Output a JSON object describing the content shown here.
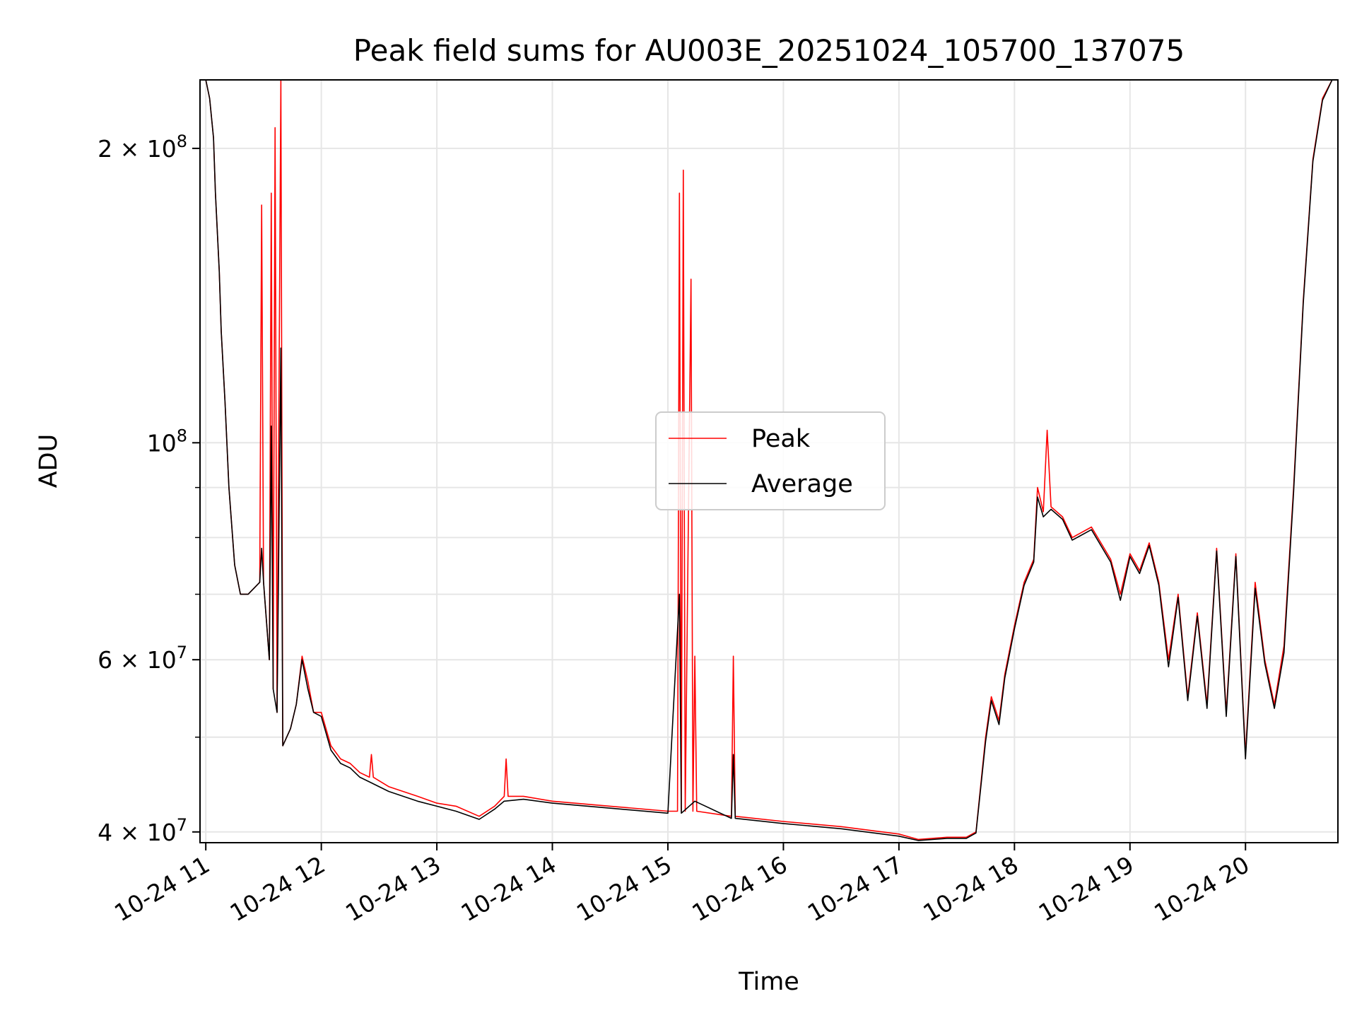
{
  "chart_data": {
    "type": "line",
    "title": "Peak field sums for AU003E_20251024_105700_137075",
    "xlabel": "Time",
    "ylabel": "ADU",
    "yscale": "log",
    "grid": true,
    "legend_position": "center",
    "xlim": [
      "2025-10-24 10:57",
      "2025-10-24 20:48"
    ],
    "ylim": [
      39000000,
      235000000
    ],
    "x_ticks": [
      "10-24 11",
      "10-24 12",
      "10-24 13",
      "10-24 14",
      "10-24 15",
      "10-24 16",
      "10-24 17",
      "10-24 18",
      "10-24 19",
      "10-24 20"
    ],
    "y_ticks": [
      {
        "value": 40000000,
        "label": "4 × 10",
        "exp": "7"
      },
      {
        "value": 60000000,
        "label": "6 × 10",
        "exp": "7"
      },
      {
        "value": 100000000,
        "label": "10",
        "exp": "8"
      },
      {
        "value": 200000000,
        "label": "2 × 10",
        "exp": "8"
      }
    ],
    "series": [
      {
        "name": "Peak",
        "color": "#ff0000",
        "points": [
          [
            "2025-10-24 10:57",
            235000000
          ],
          [
            "2025-10-24 11:00",
            235000000
          ],
          [
            "2025-10-24 11:02",
            225000000
          ],
          [
            "2025-10-24 11:04",
            205000000
          ],
          [
            "2025-10-24 11:05",
            180000000
          ],
          [
            "2025-10-24 11:07",
            150000000
          ],
          [
            "2025-10-24 11:08",
            130000000
          ],
          [
            "2025-10-24 11:10",
            110000000
          ],
          [
            "2025-10-24 11:12",
            90000000
          ],
          [
            "2025-10-24 11:15",
            75000000
          ],
          [
            "2025-10-24 11:18",
            70000000
          ],
          [
            "2025-10-24 11:22",
            70000000
          ],
          [
            "2025-10-24 11:28",
            72000000
          ],
          [
            "2025-10-24 11:29",
            175000000
          ],
          [
            "2025-10-24 11:30",
            72000000
          ],
          [
            "2025-10-24 11:33",
            60000000
          ],
          [
            "2025-10-24 11:34",
            180000000
          ],
          [
            "2025-10-24 11:35",
            56000000
          ],
          [
            "2025-10-24 11:36",
            210000000
          ],
          [
            "2025-10-24 11:37",
            53000000
          ],
          [
            "2025-10-24 11:39",
            235000000
          ],
          [
            "2025-10-24 11:40",
            49000000
          ],
          [
            "2025-10-24 11:44",
            51000000
          ],
          [
            "2025-10-24 11:47",
            54000000
          ],
          [
            "2025-10-24 11:50",
            60500000
          ],
          [
            "2025-10-24 11:53",
            57000000
          ],
          [
            "2025-10-24 11:56",
            53000000
          ],
          [
            "2025-10-24 12:00",
            53000000
          ],
          [
            "2025-10-24 12:05",
            49000000
          ],
          [
            "2025-10-24 12:10",
            47500000
          ],
          [
            "2025-10-24 12:15",
            47000000
          ],
          [
            "2025-10-24 12:20",
            46000000
          ],
          [
            "2025-10-24 12:25",
            45500000
          ],
          [
            "2025-10-24 12:26",
            48000000
          ],
          [
            "2025-10-24 12:27",
            45500000
          ],
          [
            "2025-10-24 12:35",
            44500000
          ],
          [
            "2025-10-24 12:50",
            43500000
          ],
          [
            "2025-10-24 13:00",
            42800000
          ],
          [
            "2025-10-24 13:10",
            42500000
          ],
          [
            "2025-10-24 13:22",
            41500000
          ],
          [
            "2025-10-24 13:30",
            42500000
          ],
          [
            "2025-10-24 13:35",
            43500000
          ],
          [
            "2025-10-24 13:36",
            47500000
          ],
          [
            "2025-10-24 13:37",
            43500000
          ],
          [
            "2025-10-24 13:45",
            43500000
          ],
          [
            "2025-10-24 14:00",
            43000000
          ],
          [
            "2025-10-24 14:30",
            42500000
          ],
          [
            "2025-10-24 15:00",
            42000000
          ],
          [
            "2025-10-24 15:05",
            42000000
          ],
          [
            "2025-10-24 15:06",
            180000000
          ],
          [
            "2025-10-24 15:07",
            42000000
          ],
          [
            "2025-10-24 15:08",
            190000000
          ],
          [
            "2025-10-24 15:09",
            42000000
          ],
          [
            "2025-10-24 15:12",
            147000000
          ],
          [
            "2025-10-24 15:13",
            42000000
          ],
          [
            "2025-10-24 15:14",
            60500000
          ],
          [
            "2025-10-24 15:15",
            42000000
          ],
          [
            "2025-10-24 15:33",
            41500000
          ],
          [
            "2025-10-24 15:34",
            60500000
          ],
          [
            "2025-10-24 15:35",
            41500000
          ],
          [
            "2025-10-24 16:00",
            41000000
          ],
          [
            "2025-10-24 16:30",
            40500000
          ],
          [
            "2025-10-24 17:00",
            39800000
          ],
          [
            "2025-10-24 17:10",
            39300000
          ],
          [
            "2025-10-24 17:25",
            39500000
          ],
          [
            "2025-10-24 17:35",
            39500000
          ],
          [
            "2025-10-24 17:40",
            40000000
          ],
          [
            "2025-10-24 17:45",
            50000000
          ],
          [
            "2025-10-24 17:48",
            55000000
          ],
          [
            "2025-10-24 17:52",
            52000000
          ],
          [
            "2025-10-24 17:55",
            58000000
          ],
          [
            "2025-10-24 18:00",
            65000000
          ],
          [
            "2025-10-24 18:05",
            72000000
          ],
          [
            "2025-10-24 18:10",
            76000000
          ],
          [
            "2025-10-24 18:12",
            90000000
          ],
          [
            "2025-10-24 18:15",
            85000000
          ],
          [
            "2025-10-24 18:17",
            103000000
          ],
          [
            "2025-10-24 18:19",
            86000000
          ],
          [
            "2025-10-24 18:25",
            84000000
          ],
          [
            "2025-10-24 18:30",
            80000000
          ],
          [
            "2025-10-24 18:40",
            82000000
          ],
          [
            "2025-10-24 18:50",
            76000000
          ],
          [
            "2025-10-24 18:55",
            70000000
          ],
          [
            "2025-10-24 19:00",
            77000000
          ],
          [
            "2025-10-24 19:05",
            74000000
          ],
          [
            "2025-10-24 19:10",
            79000000
          ],
          [
            "2025-10-24 19:15",
            72000000
          ],
          [
            "2025-10-24 19:20",
            60000000
          ],
          [
            "2025-10-24 19:25",
            70000000
          ],
          [
            "2025-10-24 19:30",
            55000000
          ],
          [
            "2025-10-24 19:35",
            67000000
          ],
          [
            "2025-10-24 19:40",
            54000000
          ],
          [
            "2025-10-24 19:45",
            78000000
          ],
          [
            "2025-10-24 19:50",
            53000000
          ],
          [
            "2025-10-24 19:55",
            77000000
          ],
          [
            "2025-10-24 20:00",
            48000000
          ],
          [
            "2025-10-24 20:05",
            72000000
          ],
          [
            "2025-10-24 20:10",
            60000000
          ],
          [
            "2025-10-24 20:15",
            54000000
          ],
          [
            "2025-10-24 20:20",
            62000000
          ],
          [
            "2025-10-24 20:25",
            90000000
          ],
          [
            "2025-10-24 20:30",
            140000000
          ],
          [
            "2025-10-24 20:35",
            195000000
          ],
          [
            "2025-10-24 20:40",
            225000000
          ],
          [
            "2025-10-24 20:45",
            235000000
          ],
          [
            "2025-10-24 20:48",
            235000000
          ]
        ]
      },
      {
        "name": "Average",
        "color": "#000000",
        "points": [
          [
            "2025-10-24 10:57",
            235000000
          ],
          [
            "2025-10-24 11:00",
            235000000
          ],
          [
            "2025-10-24 11:02",
            225000000
          ],
          [
            "2025-10-24 11:04",
            205000000
          ],
          [
            "2025-10-24 11:05",
            180000000
          ],
          [
            "2025-10-24 11:07",
            150000000
          ],
          [
            "2025-10-24 11:08",
            130000000
          ],
          [
            "2025-10-24 11:10",
            110000000
          ],
          [
            "2025-10-24 11:12",
            90000000
          ],
          [
            "2025-10-24 11:15",
            75000000
          ],
          [
            "2025-10-24 11:18",
            70000000
          ],
          [
            "2025-10-24 11:22",
            70000000
          ],
          [
            "2025-10-24 11:28",
            72000000
          ],
          [
            "2025-10-24 11:29",
            78000000
          ],
          [
            "2025-10-24 11:30",
            72000000
          ],
          [
            "2025-10-24 11:33",
            60000000
          ],
          [
            "2025-10-24 11:34",
            104000000
          ],
          [
            "2025-10-24 11:35",
            56000000
          ],
          [
            "2025-10-24 11:37",
            53000000
          ],
          [
            "2025-10-24 11:39",
            125000000
          ],
          [
            "2025-10-24 11:40",
            49000000
          ],
          [
            "2025-10-24 11:44",
            51000000
          ],
          [
            "2025-10-24 11:47",
            54000000
          ],
          [
            "2025-10-24 11:50",
            60000000
          ],
          [
            "2025-10-24 11:53",
            56000000
          ],
          [
            "2025-10-24 11:56",
            53000000
          ],
          [
            "2025-10-24 12:00",
            52500000
          ],
          [
            "2025-10-24 12:05",
            48500000
          ],
          [
            "2025-10-24 12:10",
            47000000
          ],
          [
            "2025-10-24 12:15",
            46500000
          ],
          [
            "2025-10-24 12:20",
            45500000
          ],
          [
            "2025-10-24 12:25",
            45000000
          ],
          [
            "2025-10-24 12:35",
            44000000
          ],
          [
            "2025-10-24 12:50",
            43000000
          ],
          [
            "2025-10-24 13:00",
            42500000
          ],
          [
            "2025-10-24 13:10",
            42000000
          ],
          [
            "2025-10-24 13:22",
            41200000
          ],
          [
            "2025-10-24 13:30",
            42200000
          ],
          [
            "2025-10-24 13:35",
            43000000
          ],
          [
            "2025-10-24 13:45",
            43200000
          ],
          [
            "2025-10-24 14:00",
            42800000
          ],
          [
            "2025-10-24 14:30",
            42300000
          ],
          [
            "2025-10-24 15:00",
            41800000
          ],
          [
            "2025-10-24 15:06",
            70000000
          ],
          [
            "2025-10-24 15:07",
            41800000
          ],
          [
            "2025-10-24 15:14",
            43000000
          ],
          [
            "2025-10-24 15:33",
            41300000
          ],
          [
            "2025-10-24 15:34",
            48000000
          ],
          [
            "2025-10-24 15:35",
            41300000
          ],
          [
            "2025-10-24 16:00",
            40800000
          ],
          [
            "2025-10-24 16:30",
            40300000
          ],
          [
            "2025-10-24 17:00",
            39600000
          ],
          [
            "2025-10-24 17:10",
            39200000
          ],
          [
            "2025-10-24 17:25",
            39400000
          ],
          [
            "2025-10-24 17:35",
            39400000
          ],
          [
            "2025-10-24 17:40",
            39900000
          ],
          [
            "2025-10-24 17:45",
            49500000
          ],
          [
            "2025-10-24 17:48",
            54500000
          ],
          [
            "2025-10-24 17:52",
            51500000
          ],
          [
            "2025-10-24 17:55",
            57500000
          ],
          [
            "2025-10-24 18:00",
            64500000
          ],
          [
            "2025-10-24 18:05",
            71500000
          ],
          [
            "2025-10-24 18:10",
            75500000
          ],
          [
            "2025-10-24 18:12",
            88000000
          ],
          [
            "2025-10-24 18:15",
            84000000
          ],
          [
            "2025-10-24 18:19",
            85500000
          ],
          [
            "2025-10-24 18:25",
            83500000
          ],
          [
            "2025-10-24 18:30",
            79500000
          ],
          [
            "2025-10-24 18:40",
            81500000
          ],
          [
            "2025-10-24 18:50",
            75500000
          ],
          [
            "2025-10-24 18:55",
            69000000
          ],
          [
            "2025-10-24 19:00",
            76500000
          ],
          [
            "2025-10-24 19:05",
            73500000
          ],
          [
            "2025-10-24 19:10",
            78500000
          ],
          [
            "2025-10-24 19:15",
            71500000
          ],
          [
            "2025-10-24 19:20",
            59000000
          ],
          [
            "2025-10-24 19:25",
            69500000
          ],
          [
            "2025-10-24 19:30",
            54500000
          ],
          [
            "2025-10-24 19:35",
            66500000
          ],
          [
            "2025-10-24 19:40",
            53500000
          ],
          [
            "2025-10-24 19:45",
            77500000
          ],
          [
            "2025-10-24 19:50",
            52500000
          ],
          [
            "2025-10-24 19:55",
            76500000
          ],
          [
            "2025-10-24 20:00",
            47500000
          ],
          [
            "2025-10-24 20:05",
            71000000
          ],
          [
            "2025-10-24 20:10",
            59500000
          ],
          [
            "2025-10-24 20:15",
            53500000
          ],
          [
            "2025-10-24 20:20",
            61000000
          ],
          [
            "2025-10-24 20:25",
            89000000
          ],
          [
            "2025-10-24 20:30",
            139000000
          ],
          [
            "2025-10-24 20:35",
            194000000
          ],
          [
            "2025-10-24 20:40",
            224000000
          ],
          [
            "2025-10-24 20:45",
            235000000
          ],
          [
            "2025-10-24 20:48",
            235000000
          ]
        ]
      }
    ]
  }
}
